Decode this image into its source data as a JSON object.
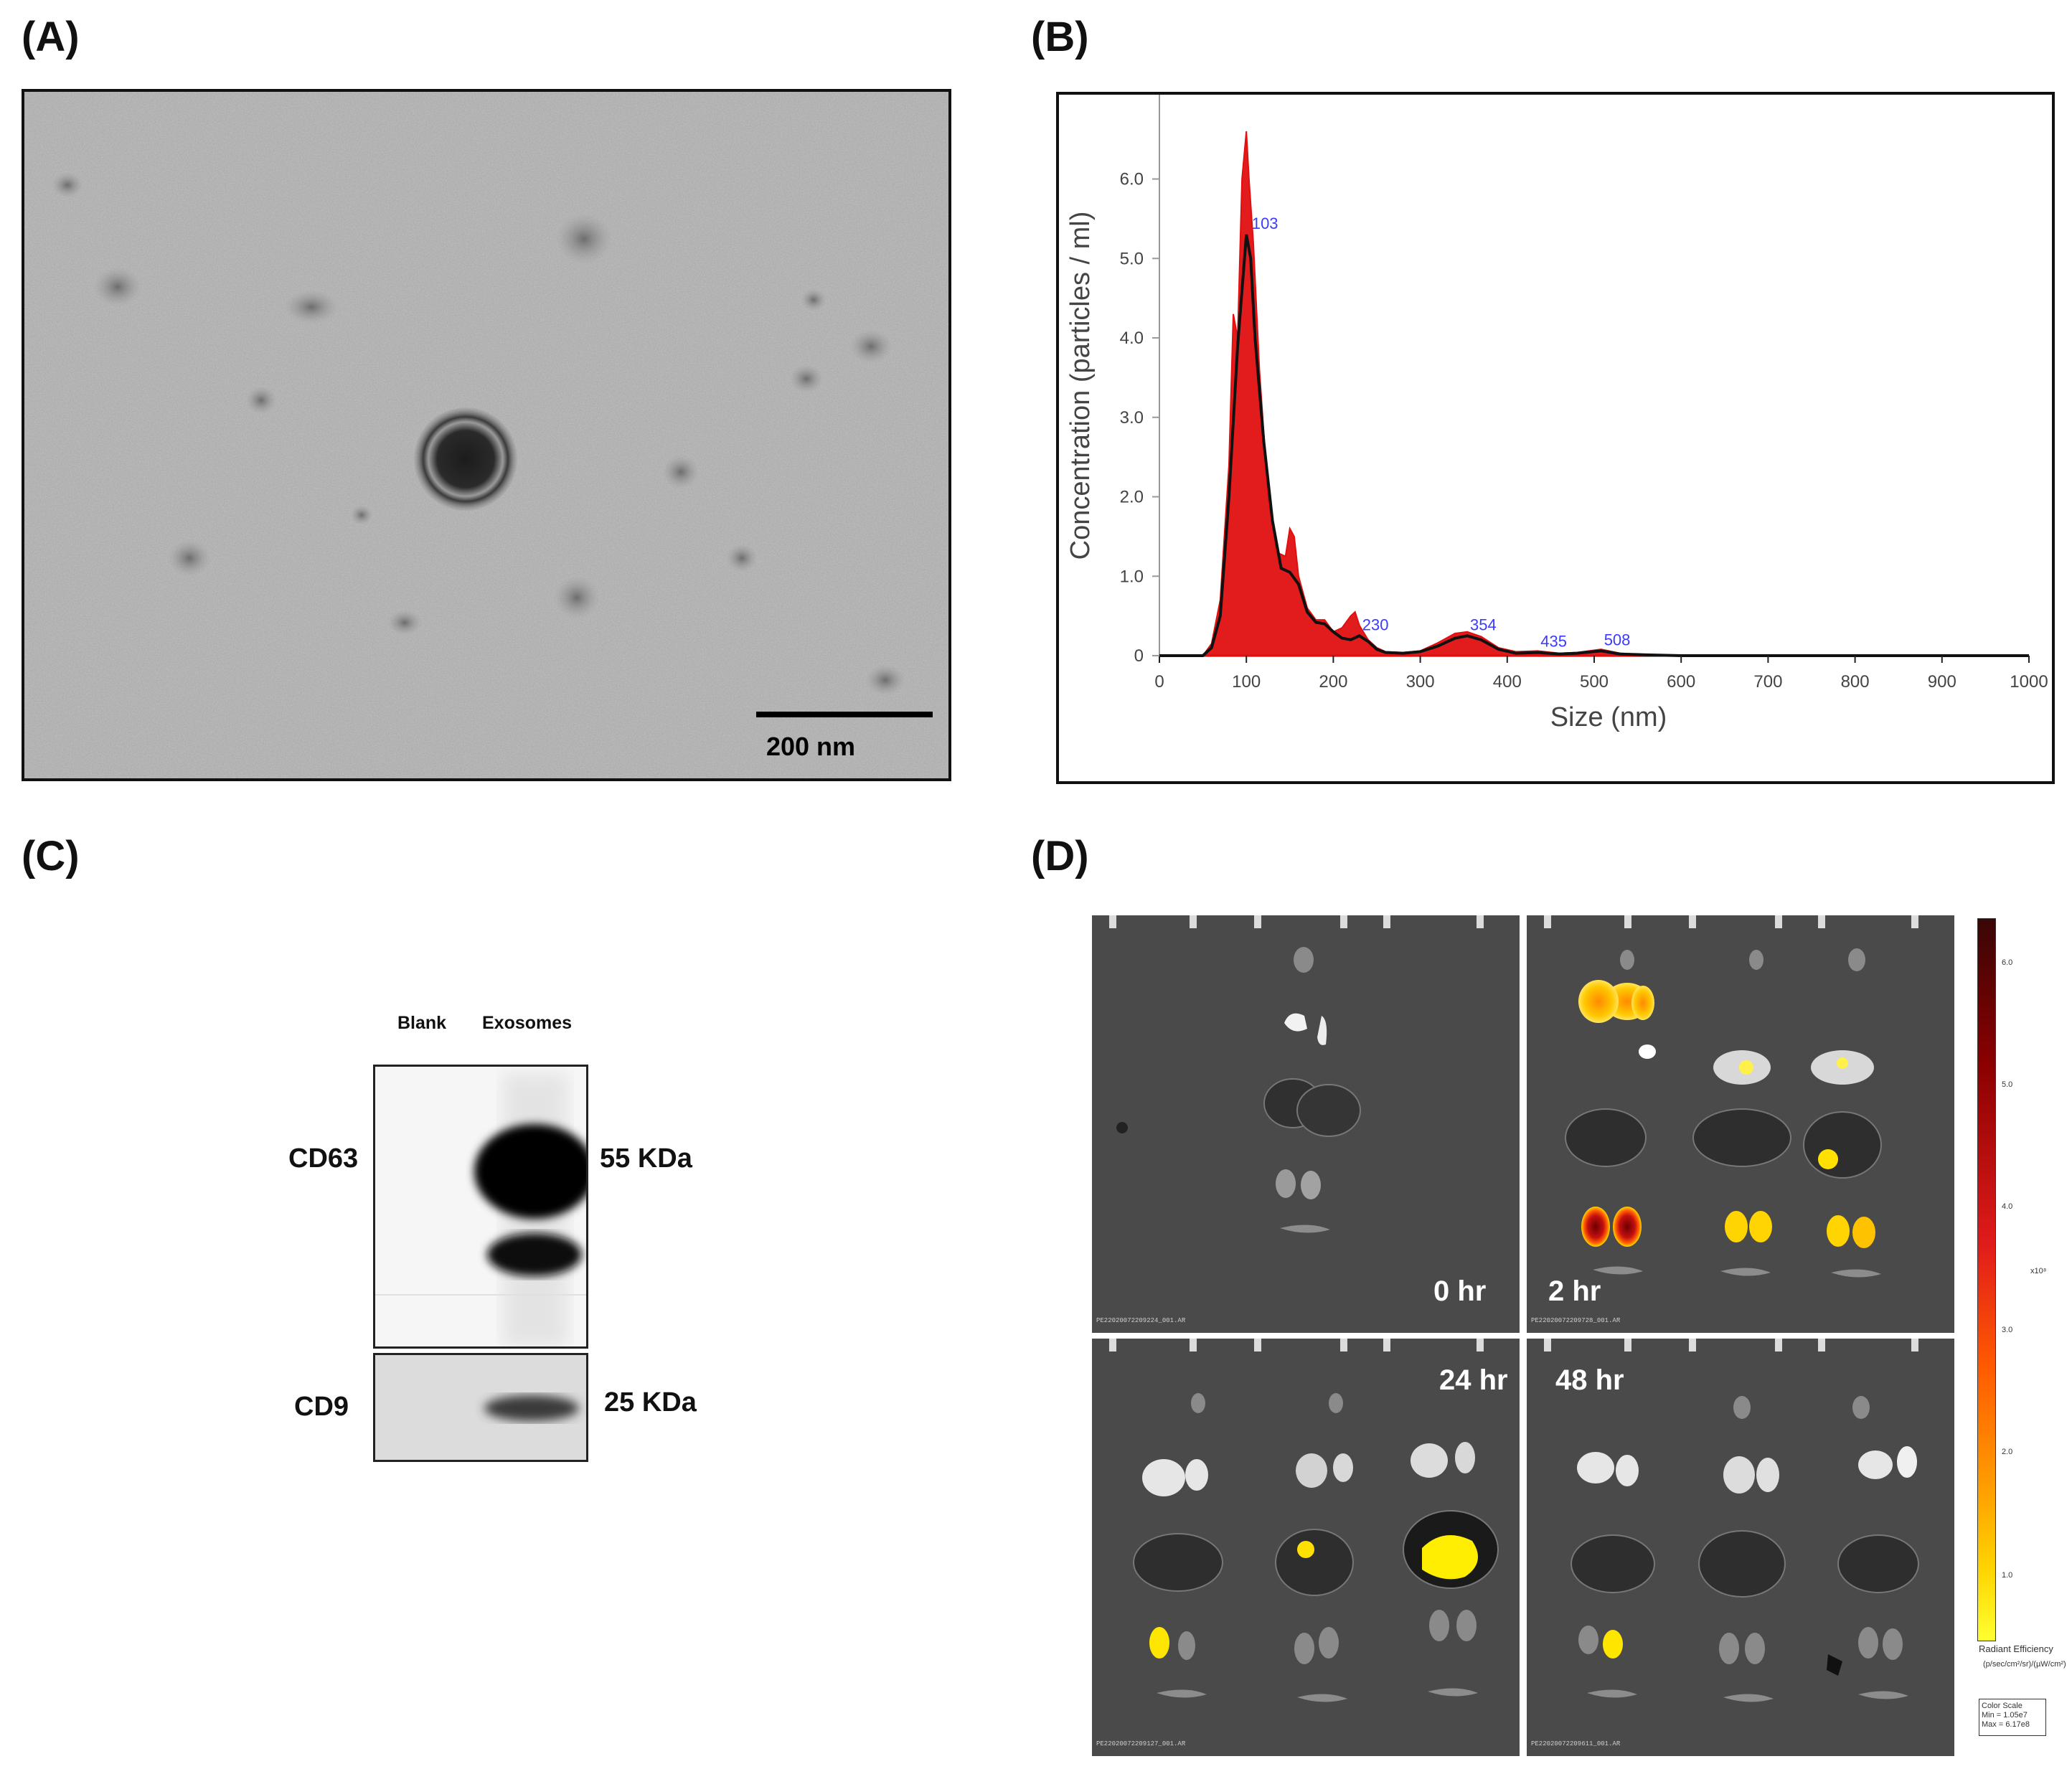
{
  "panel_labels": {
    "a": "(A)",
    "b": "(B)",
    "c": "(C)",
    "d": "(D)"
  },
  "panel_a": {
    "scale_bar_label": "200 nm"
  },
  "panel_b": {
    "chart_data": {
      "type": "line",
      "xlabel": "Size (nm)",
      "ylabel": "Concentration (particles / ml)",
      "xlim": [
        0,
        1000
      ],
      "ylim": [
        0,
        6.7
      ],
      "x_ticks": [
        "0",
        "100",
        "200",
        "300",
        "400",
        "500",
        "600",
        "700",
        "800",
        "900",
        "1000"
      ],
      "y_ticks": [
        "0",
        "1.0",
        "2.0",
        "3.0",
        "4.0",
        "5.0",
        "6.0"
      ],
      "grid": false,
      "series": [
        {
          "x": [
            0,
            50,
            60,
            70,
            80,
            90,
            95,
            100,
            105,
            110,
            120,
            130,
            140,
            150,
            160,
            170,
            180,
            190,
            200,
            210,
            220,
            230,
            240,
            250,
            260,
            280,
            300,
            320,
            340,
            354,
            370,
            390,
            410,
            435,
            460,
            480,
            508,
            530,
            560,
            600,
            700,
            800,
            900,
            1000
          ],
          "y": [
            0,
            0,
            0.1,
            0.5,
            2.0,
            3.9,
            4.6,
            5.3,
            5.0,
            4.0,
            2.7,
            1.7,
            1.1,
            1.05,
            0.9,
            0.55,
            0.42,
            0.4,
            0.3,
            0.22,
            0.2,
            0.25,
            0.18,
            0.08,
            0.04,
            0.03,
            0.05,
            0.12,
            0.22,
            0.25,
            0.2,
            0.08,
            0.03,
            0.04,
            0.02,
            0.03,
            0.06,
            0.02,
            0.01,
            0.0,
            0.0,
            0.0,
            0.0,
            0.0
          ]
        },
        {
          "x": [
            0,
            50,
            60,
            70,
            80,
            85,
            90,
            95,
            100,
            103,
            108,
            115,
            125,
            135,
            145,
            150,
            155,
            160,
            170,
            180,
            190,
            200,
            210,
            220,
            225,
            230,
            240,
            250,
            260,
            280,
            300,
            320,
            340,
            354,
            370,
            390,
            410,
            435,
            460,
            480,
            508,
            530,
            560,
            600,
            700,
            800,
            900,
            1000
          ],
          "y": [
            0,
            0,
            0.15,
            0.7,
            2.4,
            4.3,
            4.0,
            6.0,
            6.6,
            6.0,
            5.2,
            3.6,
            2.0,
            1.3,
            1.25,
            1.6,
            1.5,
            1.0,
            0.6,
            0.45,
            0.45,
            0.3,
            0.35,
            0.5,
            0.55,
            0.38,
            0.2,
            0.1,
            0.05,
            0.04,
            0.06,
            0.16,
            0.28,
            0.3,
            0.24,
            0.1,
            0.05,
            0.06,
            0.03,
            0.04,
            0.08,
            0.03,
            0.01,
            0.0,
            0.0,
            0.0,
            0.0,
            0.0
          ]
        }
      ],
      "peak_labels": [
        {
          "x": 103,
          "y": 5.3,
          "label": "103"
        },
        {
          "x": 230,
          "y": 0.25,
          "label": "230"
        },
        {
          "x": 354,
          "y": 0.25,
          "label": "354"
        },
        {
          "x": 435,
          "y": 0.04,
          "label": "435"
        },
        {
          "x": 508,
          "y": 0.06,
          "label": "508"
        }
      ],
      "colors": {
        "mean": "#111111",
        "error": "#e01010",
        "label": "#3b3bff"
      }
    }
  },
  "panel_c": {
    "columns": [
      "Blank",
      "Exosomes"
    ],
    "rows": [
      {
        "name": "CD63",
        "weight": "55 KDa"
      },
      {
        "name": "CD9",
        "weight": "25 KDa"
      }
    ]
  },
  "panel_d": {
    "tiles": [
      {
        "time": "0 hr",
        "file": "PE22020072209224_001.AR"
      },
      {
        "time": "2 hr",
        "file": "PE22020072209728_001.AR"
      },
      {
        "time": "24 hr",
        "file": "PE22020072209127_001.AR"
      },
      {
        "time": "48 hr",
        "file": "PE22020072209611_001.AR"
      }
    ],
    "colorbar": {
      "ticks": [
        "6.0",
        "5.0",
        "4.0",
        "3.0",
        "2.0",
        "1.0"
      ],
      "exponent": "x10⁸",
      "title": "Radiant Efficiency",
      "units": "(p/sec/cm²/sr)/(µW/cm²)",
      "legend_title": "Color Scale",
      "legend_min": "Min = 1.05e7",
      "legend_max": "Max = 6.17e8"
    }
  }
}
